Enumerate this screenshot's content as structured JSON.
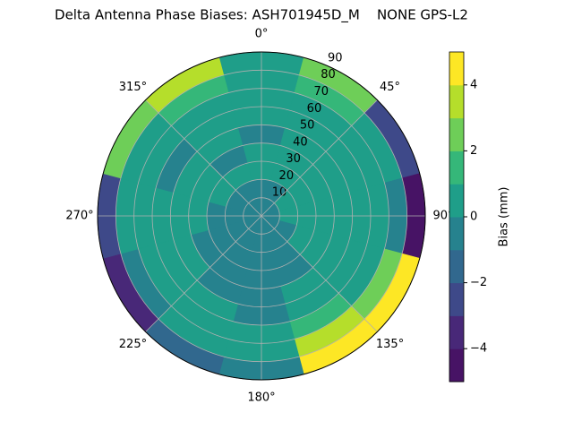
{
  "chart_data": {
    "type": "polar-contour",
    "title": "Delta Antenna Phase Biases: ASH701945D_M    NONE GPS-L2",
    "azimuth": [
      0,
      30,
      60,
      90,
      120,
      150,
      180,
      210,
      240,
      270,
      300,
      330
    ],
    "zenith": [
      5,
      15,
      25,
      35,
      45,
      55,
      65,
      75,
      85
    ],
    "values": [
      [
        -0.5,
        -0.5,
        0.5,
        0.5,
        -0.5,
        0.5,
        0.5,
        0.5,
        0.5
      ],
      [
        -0.5,
        -0.5,
        0.5,
        0.5,
        0.5,
        0.5,
        0.5,
        1.5,
        2.5
      ],
      [
        -0.5,
        0.5,
        0.5,
        0.5,
        0.5,
        0.5,
        0.5,
        0.5,
        -2.5
      ],
      [
        -0.5,
        0.5,
        0.5,
        0.5,
        0.5,
        0.5,
        0.5,
        -0.5,
        -4.5
      ],
      [
        -0.5,
        -0.5,
        0.5,
        0.5,
        0.5,
        0.5,
        0.5,
        2.5,
        4.5
      ],
      [
        -0.5,
        -0.5,
        -0.5,
        -0.5,
        0.5,
        0.5,
        1.5,
        3.5,
        4.5
      ],
      [
        -0.5,
        -0.5,
        -0.5,
        -0.5,
        -0.5,
        -0.5,
        0.5,
        0.5,
        -0.5
      ],
      [
        -0.5,
        -0.5,
        -0.5,
        -0.5,
        -0.5,
        0.5,
        0.5,
        0.5,
        -1.5
      ],
      [
        -0.5,
        -0.5,
        -0.5,
        -0.5,
        0.5,
        0.5,
        0.5,
        -0.5,
        -3.5
      ],
      [
        -0.5,
        -0.5,
        -0.5,
        0.5,
        0.5,
        0.5,
        0.5,
        0.5,
        -2.5
      ],
      [
        -0.5,
        -0.5,
        0.5,
        0.5,
        0.5,
        -0.5,
        0.5,
        0.5,
        2.5
      ],
      [
        -0.5,
        -0.5,
        0.5,
        -0.5,
        0.5,
        0.5,
        0.5,
        1.5,
        3.5
      ]
    ],
    "rlim": [
      0,
      90
    ],
    "rticks": [
      10,
      20,
      30,
      40,
      50,
      60,
      70,
      80,
      90
    ],
    "thetaticks": [
      {
        "value": 0,
        "label": "0°"
      },
      {
        "value": 45,
        "label": "45°"
      },
      {
        "value": 90,
        "label": "90°"
      },
      {
        "value": 135,
        "label": "135°"
      },
      {
        "value": 180,
        "label": "180°"
      },
      {
        "value": 225,
        "label": "225°"
      },
      {
        "value": 270,
        "label": "270°"
      },
      {
        "value": 315,
        "label": "315°"
      }
    ],
    "levels": [
      -5,
      -4,
      -3,
      -2,
      -1,
      0,
      1,
      2,
      3,
      4,
      5
    ],
    "colors": [
      "#471365",
      "#482878",
      "#3e4989",
      "#31688e",
      "#26828e",
      "#1f9e89",
      "#35b779",
      "#6ece58",
      "#b5de2b",
      "#fde725"
    ],
    "colorbar_label": "Bias (mm)",
    "colorbar_ticks": [
      {
        "value": -4,
        "label": "−4"
      },
      {
        "value": -2,
        "label": "−2"
      },
      0,
      2,
      4
    ],
    "grid": true
  }
}
